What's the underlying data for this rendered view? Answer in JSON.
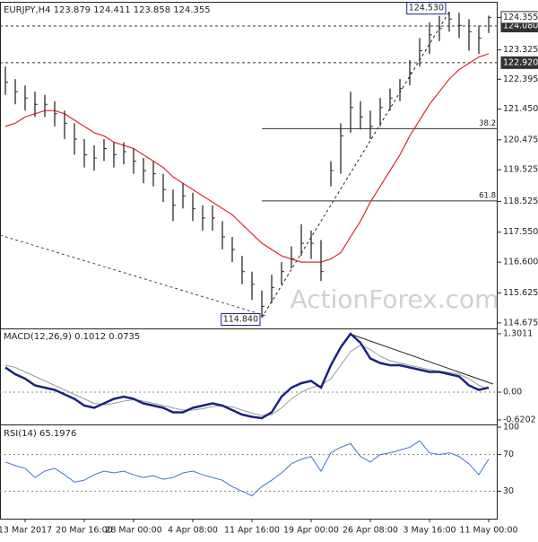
{
  "chart_data": [
    {
      "type": "ohlc",
      "title": "EURJPY,H4  123.879 124.411 123.858 124.355",
      "watermark": "ActionForex.com",
      "ylim": [
        114.5,
        124.82
      ],
      "yticks": [
        {
          "value": 123.325,
          "label": "123.325"
        },
        122.395,
        {
          "value": 121.45,
          "label": "121.450"
        },
        120.475,
        119.525,
        118.525,
        {
          "value": 117.55,
          "label": "117.550"
        },
        {
          "value": 116.6,
          "label": "116.600"
        },
        115.625,
        114.675
      ],
      "marked_levels": [
        {
          "value": 124.08,
          "label": "124.080"
        },
        {
          "value": 122.92,
          "label": "122.920"
        }
      ],
      "last": {
        "value": 124.355,
        "label": "124.355"
      },
      "swing_high": {
        "value": 124.53,
        "label": "124.530"
      },
      "swing_low": {
        "value": 114.84,
        "label": "114.840"
      },
      "fib": [
        38.2,
        61.8
      ],
      "bar_color": "#2b2b2b",
      "high": [
        122.8,
        122.4,
        122.2,
        122.0,
        121.9,
        121.7,
        121.4,
        121.0,
        120.5,
        120.3,
        120.5,
        120.4,
        120.4,
        120.2,
        119.9,
        119.8,
        119.4,
        118.9,
        119.1,
        118.8,
        118.4,
        118.4,
        117.9,
        117.4,
        116.8,
        116.3,
        115.7,
        116.2,
        116.6,
        117.1,
        117.8,
        117.6,
        117.3,
        119.8,
        121.0,
        122.0,
        121.7,
        121.4,
        121.8,
        122.1,
        122.4,
        123.0,
        123.7,
        124.2,
        124.4,
        124.53,
        124.5,
        124.3,
        124.1,
        124.411
      ],
      "low": [
        121.9,
        121.6,
        121.4,
        121.2,
        121.2,
        120.9,
        120.5,
        120.0,
        119.6,
        119.5,
        119.8,
        119.6,
        119.7,
        119.4,
        119.1,
        119.0,
        118.5,
        117.9,
        118.3,
        117.9,
        117.6,
        117.6,
        117.0,
        116.6,
        115.9,
        115.4,
        114.84,
        115.3,
        115.9,
        116.4,
        116.8,
        116.7,
        116.0,
        119.0,
        119.4,
        120.7,
        120.8,
        120.5,
        120.9,
        121.4,
        121.7,
        122.2,
        122.8,
        123.2,
        123.6,
        123.9,
        123.7,
        123.3,
        123.2,
        123.858
      ],
      "close": [
        122.3,
        122.0,
        121.8,
        121.6,
        121.6,
        121.3,
        121.0,
        120.5,
        120.0,
        119.9,
        120.2,
        120.0,
        120.1,
        119.8,
        119.5,
        119.4,
        118.9,
        118.4,
        118.7,
        118.3,
        118.0,
        118.0,
        117.4,
        117.0,
        116.3,
        115.9,
        115.2,
        115.8,
        116.3,
        116.7,
        117.2,
        117.2,
        116.3,
        119.5,
        120.6,
        121.5,
        121.2,
        120.9,
        121.5,
        121.8,
        122.1,
        122.6,
        123.3,
        123.8,
        124.0,
        124.3,
        124.1,
        123.9,
        123.7,
        124.355
      ],
      "ma": {
        "color": "#e0282a",
        "values": [
          120.9,
          121.0,
          121.2,
          121.3,
          121.4,
          121.4,
          121.3,
          121.1,
          120.9,
          120.7,
          120.6,
          120.4,
          120.3,
          120.2,
          120.0,
          119.8,
          119.6,
          119.3,
          119.1,
          118.9,
          118.7,
          118.5,
          118.3,
          118.1,
          117.8,
          117.5,
          117.2,
          117.0,
          116.8,
          116.7,
          116.6,
          116.6,
          116.6,
          116.7,
          116.9,
          117.4,
          117.9,
          118.5,
          119.0,
          119.5,
          120.0,
          120.6,
          121.1,
          121.6,
          122.0,
          122.4,
          122.7,
          122.9,
          123.1,
          123.2
        ]
      }
    },
    {
      "type": "line",
      "title": "MACD(12,26,9) 0.1012 0.0735",
      "ylim": [
        -0.7,
        1.42
      ],
      "yticks": [
        1.3011,
        {
          "value": 0,
          "label": "0.00"
        },
        -0.6202
      ],
      "series": [
        {
          "color": "#1a237e",
          "width": 2.5,
          "values": [
            0.55,
            0.4,
            0.3,
            0.15,
            0.1,
            0.05,
            -0.05,
            -0.15,
            -0.3,
            -0.35,
            -0.25,
            -0.15,
            -0.1,
            -0.15,
            -0.25,
            -0.3,
            -0.35,
            -0.45,
            -0.45,
            -0.35,
            -0.3,
            -0.25,
            -0.3,
            -0.4,
            -0.5,
            -0.55,
            -0.58,
            -0.45,
            -0.1,
            0.1,
            0.2,
            0.25,
            0.1,
            0.6,
            1.0,
            1.3,
            1.1,
            0.75,
            0.65,
            0.6,
            0.6,
            0.55,
            0.5,
            0.45,
            0.45,
            0.4,
            0.35,
            0.15,
            0.05,
            0.1012
          ]
        },
        {
          "color": "#9a9a9a",
          "width": 1,
          "values": [
            0.6,
            0.55,
            0.45,
            0.35,
            0.25,
            0.15,
            0.05,
            -0.05,
            -0.15,
            -0.25,
            -0.28,
            -0.25,
            -0.2,
            -0.17,
            -0.2,
            -0.25,
            -0.3,
            -0.35,
            -0.4,
            -0.4,
            -0.37,
            -0.32,
            -0.3,
            -0.33,
            -0.4,
            -0.47,
            -0.52,
            -0.5,
            -0.35,
            -0.15,
            0.0,
            0.1,
            0.15,
            0.3,
            0.6,
            0.9,
            1.05,
            0.95,
            0.8,
            0.7,
            0.65,
            0.6,
            0.55,
            0.5,
            0.47,
            0.44,
            0.4,
            0.3,
            0.15,
            0.0735
          ]
        }
      ]
    },
    {
      "type": "line",
      "title": "RSI(14) 65.1976",
      "ylim": [
        0,
        102
      ],
      "yticks": [
        100,
        70,
        30
      ],
      "dashed_levels": [
        70,
        30
      ],
      "categories": [
        null,
        null,
        "13 Mar 2017",
        null,
        null,
        null,
        null,
        null,
        "20 Mar 16:00",
        null,
        null,
        null,
        null,
        "28 Mar 00:00",
        null,
        null,
        null,
        null,
        null,
        "4 Apr 08:00",
        null,
        null,
        null,
        null,
        null,
        "11 Apr 16:00",
        null,
        null,
        null,
        null,
        null,
        "19 Apr 00:00",
        null,
        null,
        null,
        null,
        null,
        "26 Apr 08:00",
        null,
        null,
        null,
        null,
        null,
        "3 May 16:00",
        null,
        null,
        null,
        null,
        null,
        "11 May 00:00"
      ],
      "series": [
        {
          "color": "#3a78c8",
          "width": 1,
          "values": [
            62,
            58,
            55,
            45,
            52,
            55,
            48,
            40,
            42,
            48,
            52,
            50,
            52,
            48,
            45,
            47,
            43,
            45,
            50,
            52,
            48,
            45,
            42,
            35,
            30,
            25,
            35,
            42,
            50,
            60,
            65,
            68,
            52,
            72,
            78,
            82,
            68,
            62,
            70,
            72,
            75,
            78,
            85,
            72,
            70,
            72,
            68,
            60,
            48,
            65.1976
          ]
        }
      ]
    }
  ]
}
